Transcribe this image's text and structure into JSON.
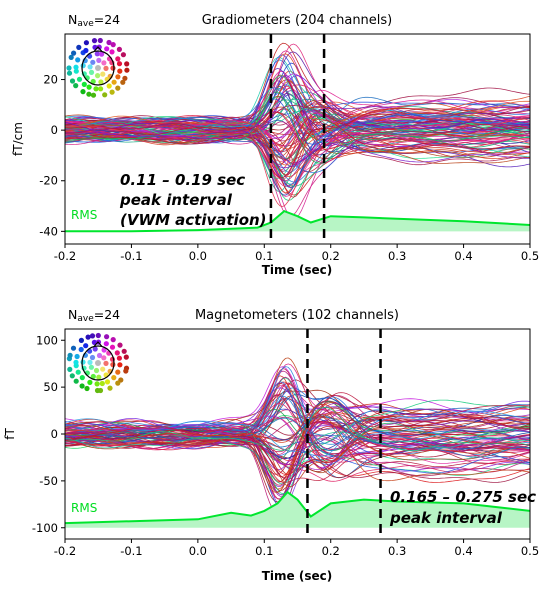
{
  "chart_data": [
    {
      "type": "line",
      "title": "Gradiometers (204 channels)",
      "nave": {
        "prefix": "N",
        "sub": "ave",
        "value": "=24"
      },
      "xlabel": "Time (sec)",
      "ylabel": "fT/cm",
      "xlim": [
        -0.2,
        0.5
      ],
      "ylim": [
        -45,
        38
      ],
      "xticks": [
        "-0.2",
        "-0.1",
        "0.0",
        "0.1",
        "0.2",
        "0.3",
        "0.4",
        "0.5"
      ],
      "xtick_values": [
        -0.2,
        -0.1,
        0.0,
        0.1,
        0.2,
        0.3,
        0.4,
        0.5
      ],
      "yticks": [
        "-40",
        "-20",
        "0",
        "20"
      ],
      "ytick_values": [
        -40,
        -20,
        0,
        20
      ],
      "vlines": [
        0.11,
        0.19
      ],
      "rms_label": "RMS",
      "rms": {
        "baseline": -40,
        "x": [
          -0.2,
          -0.1,
          0.0,
          0.05,
          0.09,
          0.11,
          0.13,
          0.15,
          0.17,
          0.2,
          0.25,
          0.3,
          0.4,
          0.5
        ],
        "y": [
          -40,
          -40,
          -39.5,
          -39,
          -38.5,
          -36.5,
          -32,
          -34,
          -36.5,
          -34,
          -34.5,
          -35,
          -36,
          -37.5
        ]
      },
      "annotation": [
        "0.11 – 0.19 sec",
        "peak interval",
        "(VWM activation)"
      ],
      "n_traces": 110,
      "trace_amplitude": {
        "baseline": 4,
        "peak": 28,
        "late": 12
      },
      "colors": {
        "rms": "#00e62e",
        "rms_fill": "#b7f5c5",
        "vline": "#000000"
      }
    },
    {
      "type": "line",
      "title": "Magnetometers (102 channels)",
      "nave": {
        "prefix": "N",
        "sub": "ave",
        "value": "=24"
      },
      "xlabel": "Time (sec)",
      "ylabel": "fT",
      "xlim": [
        -0.2,
        0.5
      ],
      "ylim": [
        -112,
        112
      ],
      "xticks": [
        "-0.2",
        "-0.1",
        "0.0",
        "0.1",
        "0.2",
        "0.3",
        "0.4",
        "0.5"
      ],
      "xtick_values": [
        -0.2,
        -0.1,
        0.0,
        0.1,
        0.2,
        0.3,
        0.4,
        0.5
      ],
      "yticks": [
        "-100",
        "-50",
        "0",
        "50",
        "100"
      ],
      "ytick_values": [
        -100,
        -50,
        0,
        50,
        100
      ],
      "vlines": [
        0.165,
        0.275
      ],
      "rms_label": "RMS",
      "rms": {
        "baseline": -100,
        "x": [
          -0.2,
          -0.1,
          0.0,
          0.05,
          0.08,
          0.1,
          0.12,
          0.135,
          0.15,
          0.17,
          0.2,
          0.25,
          0.3,
          0.4,
          0.5
        ],
        "y": [
          -95,
          -93,
          -91,
          -84,
          -87,
          -82,
          -74,
          -62,
          -70,
          -88,
          -74,
          -70,
          -72,
          -74,
          -82
        ]
      },
      "annotation": [
        "0.165 – 0.275 sec",
        "peak interval"
      ],
      "n_traces": 90,
      "trace_amplitude": {
        "baseline": 12,
        "peak": 80,
        "late": 40
      },
      "colors": {
        "rms": "#00e62e",
        "rms_fill": "#b7f5c5",
        "vline": "#000000"
      }
    }
  ]
}
